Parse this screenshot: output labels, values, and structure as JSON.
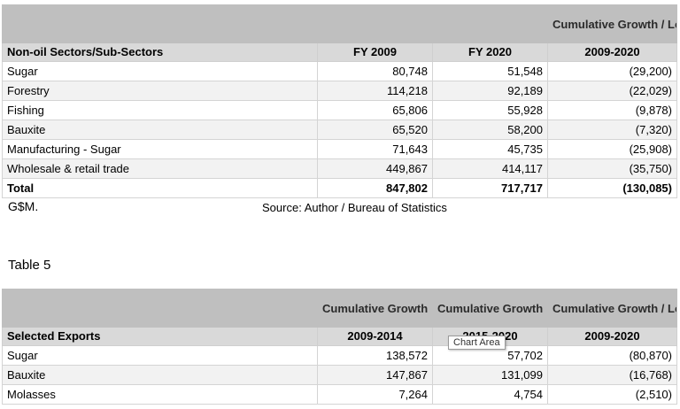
{
  "table1": {
    "header_top": {
      "c1": "",
      "c2": "",
      "c3": "",
      "c4": "Cumulative Growth / Loss"
    },
    "header": {
      "c1": "Non-oil Sectors/Sub-Sectors",
      "c2": "FY 2009",
      "c3": "FY 2020",
      "c4": "2009-2020"
    },
    "rows": [
      {
        "name": "Sugar",
        "fy2009": "80,748",
        "fy2020": "51,548",
        "change": "(29,200)"
      },
      {
        "name": "Forestry",
        "fy2009": "114,218",
        "fy2020": "92,189",
        "change": "(22,029)"
      },
      {
        "name": "Fishing",
        "fy2009": "65,806",
        "fy2020": "55,928",
        "change": "(9,878)"
      },
      {
        "name": "Bauxite",
        "fy2009": "65,520",
        "fy2020": "58,200",
        "change": "(7,320)"
      },
      {
        "name": "Manufacturing - Sugar",
        "fy2009": "71,643",
        "fy2020": "45,735",
        "change": "(25,908)"
      },
      {
        "name": "Wholesale & retail trade",
        "fy2009": "449,867",
        "fy2020": "414,117",
        "change": "(35,750)"
      }
    ],
    "total": {
      "name": "Total",
      "fy2009": "847,802",
      "fy2020": "717,717",
      "change": "(130,085)"
    }
  },
  "notes": {
    "unit": "G$M.",
    "source": "Source: Author / Bureau of Statistics"
  },
  "table2_label": "Table 5",
  "table2": {
    "header_top": {
      "c1": "",
      "c2": "Cumulative Growth",
      "c3": "Cumulative Growth",
      "c4": "Cumulative Growth / Loss"
    },
    "header": {
      "c1": "Selected Exports",
      "c2": "2009-2014",
      "c3": "2015-2020",
      "c4": "2009-2020"
    },
    "rows": [
      {
        "name": "Sugar",
        "a": "138,572",
        "b": "57,702",
        "c": "(80,870)"
      },
      {
        "name": "Bauxite",
        "a": "147,867",
        "b": "131,099",
        "c": "(16,768)"
      },
      {
        "name": "Molasses",
        "a": "7,264",
        "b": "4,754",
        "c": "(2,510)"
      }
    ]
  },
  "tooltip": "Chart Area"
}
